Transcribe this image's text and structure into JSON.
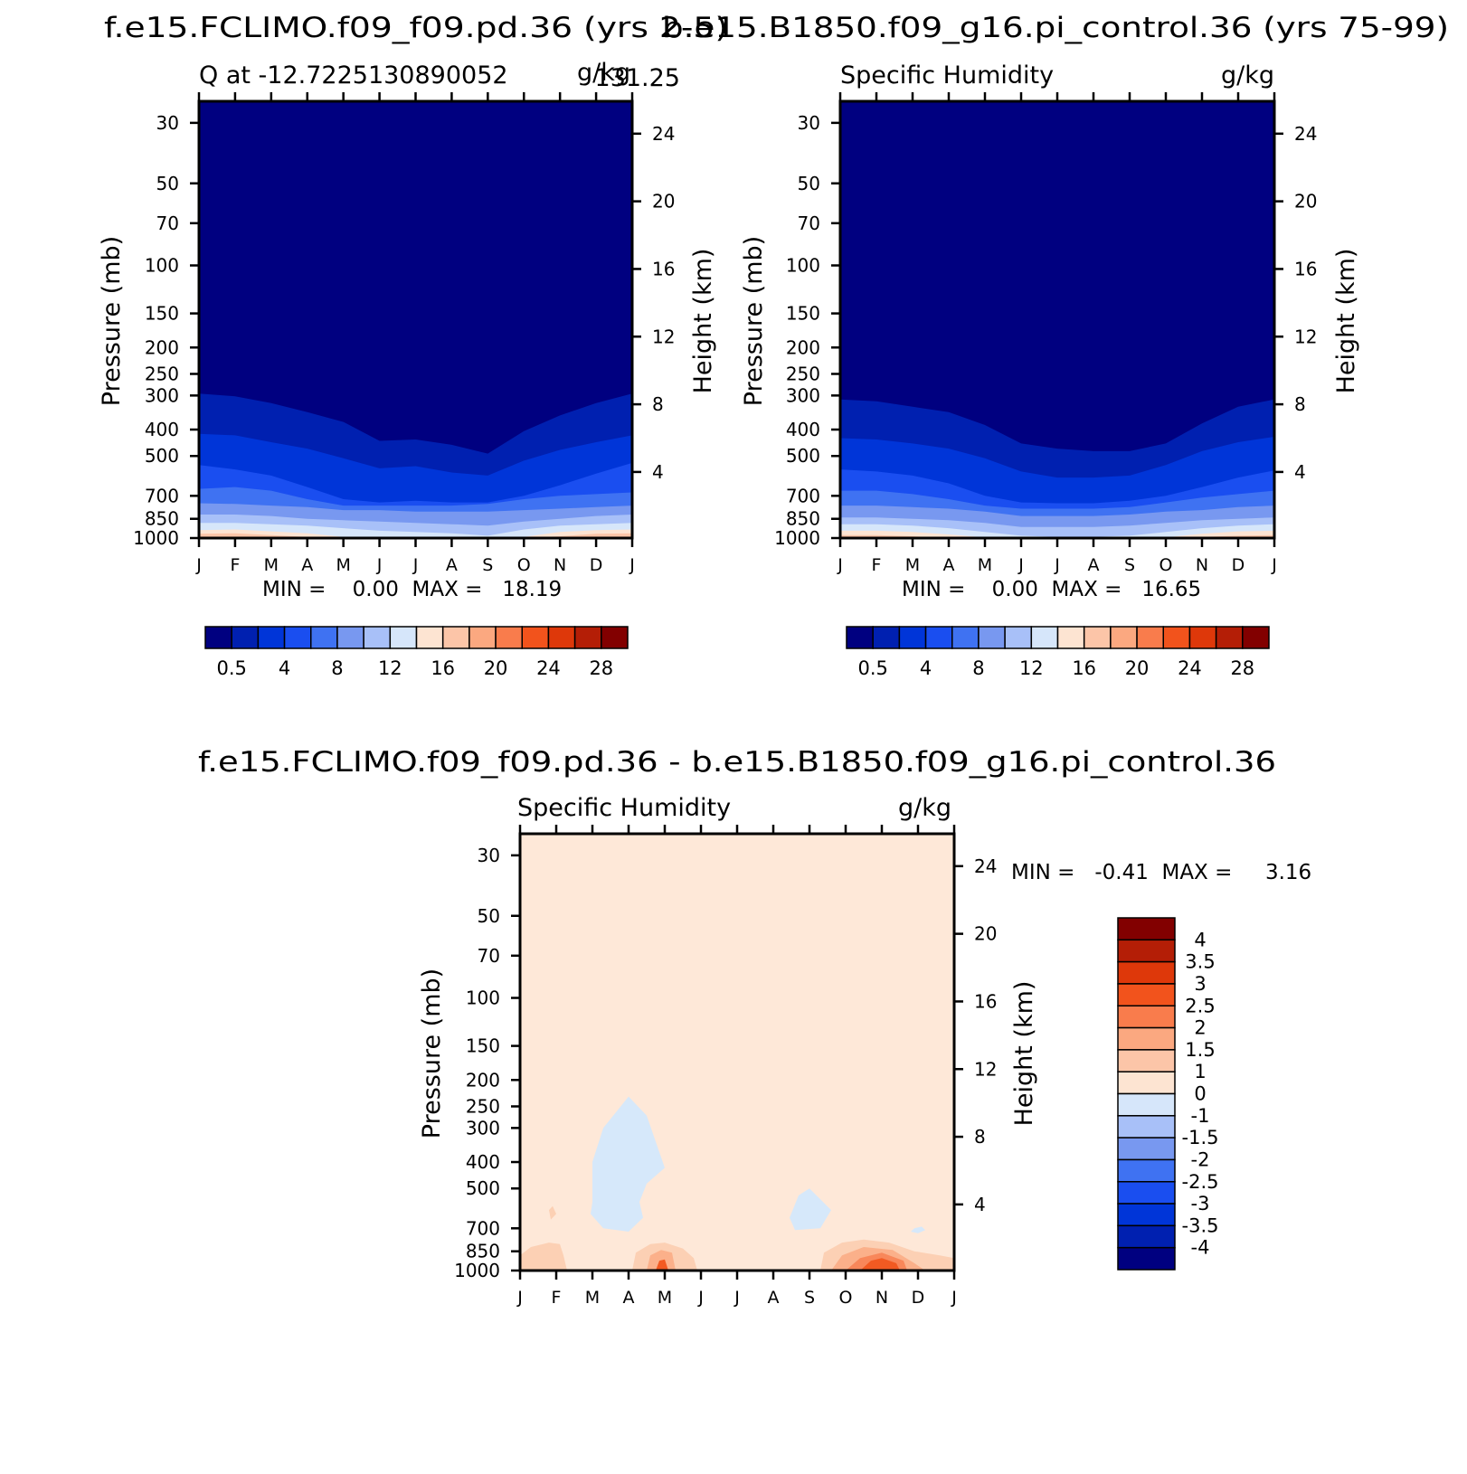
{
  "figure_titles": {
    "left": "f.e15.FCLIMO.f09_f09.pd.36 (yrs 2-5)",
    "right": "b.e15.B1850.f09_g16.pi_control.36 (yrs 75-99)",
    "bottom": "f.e15.FCLIMO.f09_f09.pd.36 - b.e15.B1850.f09_g16.pi_control.36"
  },
  "colors": {
    "abs": [
      "#000080",
      "#0020b0",
      "#0035d8",
      "#1a4ef0",
      "#3f72f2",
      "#7898f0",
      "#a8c0f8",
      "#d6e6fa",
      "#fde4d2",
      "#fcc5a8",
      "#fba880",
      "#f97c4c",
      "#f2531c",
      "#de380a",
      "#b41e06",
      "#820000"
    ],
    "diff": {
      "pos_3": "#f25a22",
      "pos_2": "#f8875a",
      "pos_1": "#fbb08a",
      "pos_0": "#fcd0b4",
      "base": "#fee8d8",
      "neg": "#d6e8fa"
    }
  },
  "chart_data": [
    {
      "type": "heatmap",
      "id": "left",
      "title": "Q at -12.7225130890052 g/kg 131.25",
      "left_string": "Q at -12.7225130890052",
      "right_string": "g/kg",
      "extra_string": "131.25",
      "xlabel": "",
      "ylabel": "Pressure (mb)",
      "ylabel_right": "Height (km)",
      "x_ticks": [
        "J",
        "F",
        "M",
        "A",
        "M",
        "J",
        "J",
        "A",
        "S",
        "O",
        "N",
        "D",
        "J"
      ],
      "y_ticks": [
        30,
        50,
        70,
        100,
        150,
        200,
        250,
        300,
        400,
        500,
        700,
        850,
        1000
      ],
      "y_ticks_right": [
        24,
        20,
        16,
        12,
        8,
        4
      ],
      "yscale": "log",
      "ylim": [
        1000,
        25
      ],
      "stats": "MIN =    0.00  MAX =   18.19",
      "min": 0.0,
      "max": 18.19,
      "levels": [
        0.5,
        4,
        8,
        12,
        16,
        20,
        24,
        28
      ],
      "colorbar_labels": [
        "0.5",
        "4",
        "8",
        "12",
        "16",
        "20",
        "24",
        "28"
      ],
      "contour_boundaries_hPa": {
        "months": [
          0,
          1,
          2,
          3,
          4,
          5,
          6,
          7,
          8,
          9,
          10,
          11,
          12
        ],
        "b0": [
          295,
          302,
          320,
          345,
          375,
          440,
          435,
          455,
          490,
          405,
          355,
          320,
          295
        ],
        "b1": [
          415,
          420,
          445,
          470,
          510,
          555,
          545,
          575,
          590,
          520,
          475,
          445,
          420
        ],
        "b2": [
          540,
          560,
          590,
          650,
          720,
          740,
          730,
          740,
          740,
          700,
          640,
          580,
          530
        ],
        "b3": [
          660,
          650,
          670,
          720,
          760,
          760,
          760,
          760,
          750,
          720,
          700,
          690,
          680
        ],
        "b4": [
          745,
          750,
          760,
          770,
          790,
          790,
          800,
          800,
          800,
          790,
          780,
          770,
          760
        ],
        "b5": [
          820,
          820,
          830,
          850,
          860,
          870,
          880,
          890,
          900,
          870,
          850,
          830,
          820
        ],
        "b6": [
          880,
          880,
          890,
          900,
          920,
          940,
          950,
          960,
          980,
          930,
          900,
          890,
          880
        ],
        "b7": [
          935,
          930,
          945,
          960,
          990,
          1000,
          1000,
          1000,
          1000,
          990,
          950,
          935,
          930
        ],
        "b8": [
          965,
          960,
          975,
          990,
          1000,
          1000,
          1000,
          1000,
          1000,
          1000,
          985,
          965,
          960
        ]
      }
    },
    {
      "type": "heatmap",
      "id": "right",
      "title": "Specific Humidity g/kg",
      "left_string": "Specific Humidity",
      "right_string": "g/kg",
      "xlabel": "",
      "ylabel": "Pressure (mb)",
      "ylabel_right": "Height (km)",
      "x_ticks": [
        "J",
        "F",
        "M",
        "A",
        "M",
        "J",
        "J",
        "A",
        "S",
        "O",
        "N",
        "D",
        "J"
      ],
      "y_ticks": [
        30,
        50,
        70,
        100,
        150,
        200,
        250,
        300,
        400,
        500,
        700,
        850,
        1000
      ],
      "y_ticks_right": [
        24,
        20,
        16,
        12,
        8,
        4
      ],
      "yscale": "log",
      "ylim": [
        1000,
        25
      ],
      "stats": "MIN =    0.00  MAX =   16.65",
      "min": 0.0,
      "max": 16.65,
      "levels": [
        0.5,
        4,
        8,
        12,
        16,
        20,
        24,
        28
      ],
      "colorbar_labels": [
        "0.5",
        "4",
        "8",
        "12",
        "16",
        "20",
        "24",
        "28"
      ],
      "contour_boundaries_hPa": {
        "months": [
          0,
          1,
          2,
          3,
          4,
          5,
          6,
          7,
          8,
          9,
          10,
          11,
          12
        ],
        "b0": [
          310,
          315,
          330,
          345,
          385,
          450,
          470,
          480,
          480,
          450,
          380,
          330,
          310
        ],
        "b1": [
          430,
          435,
          450,
          470,
          510,
          570,
          600,
          600,
          590,
          540,
          480,
          445,
          425
        ],
        "b2": [
          560,
          570,
          590,
          630,
          700,
          740,
          745,
          745,
          730,
          700,
          650,
          600,
          565
        ],
        "b3": [
          670,
          670,
          690,
          720,
          760,
          780,
          780,
          780,
          770,
          740,
          710,
          690,
          670
        ],
        "b4": [
          760,
          760,
          770,
          780,
          800,
          830,
          830,
          830,
          820,
          800,
          790,
          770,
          760
        ],
        "b5": [
          840,
          840,
          850,
          860,
          880,
          910,
          910,
          910,
          900,
          880,
          860,
          850,
          840
        ],
        "b6": [
          890,
          890,
          900,
          920,
          950,
          980,
          990,
          990,
          980,
          950,
          920,
          900,
          890
        ],
        "b7": [
          940,
          940,
          950,
          970,
          995,
          1000,
          1000,
          1000,
          1000,
          995,
          965,
          945,
          940
        ],
        "b8": [
          975,
          975,
          985,
          1000,
          1000,
          1000,
          1000,
          1000,
          1000,
          1000,
          990,
          980,
          975
        ]
      }
    },
    {
      "type": "heatmap",
      "id": "diff",
      "title": "Specific Humidity g/kg",
      "left_string": "Specific Humidity",
      "right_string": "g/kg",
      "xlabel": "",
      "ylabel": "Pressure (mb)",
      "ylabel_right": "Height (km)",
      "x_ticks": [
        "J",
        "F",
        "M",
        "A",
        "M",
        "J",
        "J",
        "A",
        "S",
        "O",
        "N",
        "D",
        "J"
      ],
      "y_ticks": [
        30,
        50,
        70,
        100,
        150,
        200,
        250,
        300,
        400,
        500,
        700,
        850,
        1000
      ],
      "y_ticks_right": [
        24,
        20,
        16,
        12,
        8,
        4
      ],
      "yscale": "log",
      "ylim": [
        1000,
        25
      ],
      "stats": "MIN =   -0.41  MAX =     3.16",
      "min": -0.41,
      "max": 3.16,
      "levels": [
        -4,
        -3.5,
        -3,
        -2.5,
        -2,
        -1.5,
        -1,
        0,
        1,
        1.5,
        2,
        2.5,
        3,
        3.5,
        4
      ],
      "colorbar_labels": [
        "4",
        "3.5",
        "3",
        "2.5",
        "2",
        "1.5",
        "1",
        "0",
        "-1",
        "-1.5",
        "-2",
        "-2.5",
        "-3",
        "-3.5",
        "-4"
      ],
      "colorbar_colors_top_to_bottom": [
        "#820000",
        "#b41e06",
        "#de380a",
        "#f2531c",
        "#f97c4c",
        "#fba880",
        "#fcc5a8",
        "#fde4d2",
        "#d6e6fa",
        "#a8c0f8",
        "#7898f0",
        "#3f72f2",
        "#1a4ef0",
        "#0035d8",
        "#0020b0",
        "#000080"
      ]
    }
  ]
}
